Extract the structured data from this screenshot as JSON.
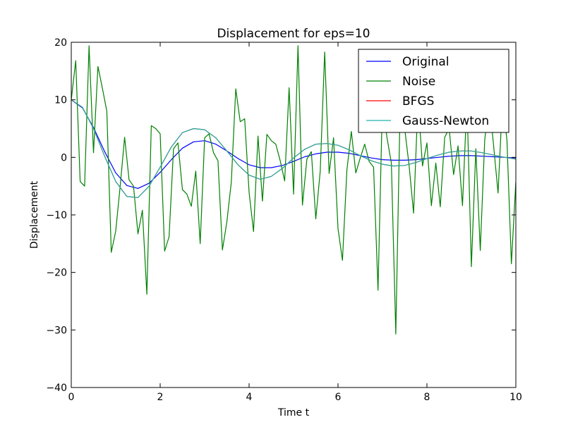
{
  "chart_data": {
    "type": "line",
    "title": "Displacement for eps=10",
    "xlabel": "Time t",
    "ylabel": "Displacement",
    "xlim": [
      0,
      10
    ],
    "ylim": [
      -40,
      20
    ],
    "xticks": [
      0,
      2,
      4,
      6,
      8,
      10
    ],
    "yticks": [
      -40,
      -30,
      -20,
      -10,
      0,
      10,
      20
    ],
    "xtick_labels": [
      "0",
      "2",
      "4",
      "6",
      "8",
      "10"
    ],
    "ytick_labels": [
      "−40",
      "−30",
      "−20",
      "−10",
      "0",
      "10",
      "20"
    ],
    "grid": false,
    "legend_position": "top-right",
    "series": [
      {
        "name": "Original",
        "color": "#0000ff",
        "x": [
          0,
          0.25,
          0.5,
          0.75,
          1.0,
          1.25,
          1.5,
          1.75,
          2.0,
          2.25,
          2.5,
          2.75,
          3.0,
          3.25,
          3.5,
          3.75,
          4.0,
          4.25,
          4.5,
          4.75,
          5.0,
          5.25,
          5.5,
          5.75,
          6.0,
          6.25,
          6.5,
          6.75,
          7.0,
          7.25,
          7.5,
          7.75,
          8.0,
          8.25,
          8.5,
          8.75,
          9.0,
          9.25,
          9.5,
          9.75,
          10.0
        ],
        "y": [
          10,
          8.6,
          5.2,
          1.0,
          -2.7,
          -4.9,
          -5.4,
          -4.5,
          -2.6,
          -0.4,
          1.6,
          2.7,
          2.9,
          2.3,
          1.1,
          -0.2,
          -1.3,
          -1.8,
          -1.8,
          -1.4,
          -0.7,
          0.1,
          0.6,
          0.9,
          0.9,
          0.7,
          0.3,
          -0.1,
          -0.4,
          -0.5,
          -0.5,
          -0.4,
          -0.2,
          0.0,
          0.2,
          0.3,
          0.3,
          0.2,
          0.1,
          0.0,
          -0.1
        ]
      },
      {
        "name": "Noise",
        "color": "#008000",
        "x": [
          0,
          0.1,
          0.2,
          0.3,
          0.4,
          0.5,
          0.6,
          0.7,
          0.8,
          0.9,
          1.0,
          1.1,
          1.2,
          1.3,
          1.4,
          1.5,
          1.6,
          1.7,
          1.8,
          1.9,
          2.0,
          2.1,
          2.2,
          2.3,
          2.4,
          2.5,
          2.6,
          2.7,
          2.8,
          2.9,
          3.0,
          3.1,
          3.2,
          3.3,
          3.4,
          3.5,
          3.6,
          3.7,
          3.8,
          3.9,
          4.0,
          4.1,
          4.2,
          4.3,
          4.4,
          4.5,
          4.6,
          4.7,
          4.8,
          4.9,
          5.0,
          5.1,
          5.2,
          5.3,
          5.4,
          5.5,
          5.6,
          5.7,
          5.8,
          5.9,
          6.0,
          6.1,
          6.2,
          6.3,
          6.4,
          6.5,
          6.6,
          6.7,
          6.8,
          6.9,
          7.0,
          7.1,
          7.2,
          7.3,
          7.4,
          7.5,
          7.6,
          7.7,
          7.8,
          7.9,
          8.0,
          8.1,
          8.2,
          8.3,
          8.4,
          8.5,
          8.6,
          8.7,
          8.8,
          8.9,
          9.0,
          9.1,
          9.2,
          9.3,
          9.4,
          9.5,
          9.6,
          9.7,
          9.8,
          9.9,
          10.0
        ],
        "y": [
          10,
          16.8,
          -4.2,
          -5.0,
          19.4,
          0.8,
          15.8,
          12.0,
          8.0,
          -16.5,
          -12.8,
          -5.0,
          3.5,
          -3.9,
          -5.0,
          -13.3,
          -9.2,
          -23.8,
          5.5,
          5.0,
          4.1,
          -16.3,
          -13.8,
          1.5,
          2.5,
          -5.6,
          -6.4,
          -8.5,
          -2.4,
          -15.0,
          3.4,
          4.1,
          0.8,
          -0.6,
          -16.1,
          -11.2,
          -4.3,
          11.9,
          6.2,
          6.7,
          -6.1,
          -12.9,
          3.7,
          -7.6,
          4.0,
          2.9,
          2.3,
          -0.6,
          -4.1,
          12.1,
          -6.4,
          19.4,
          -8.3,
          -0.3,
          1.0,
          -10.7,
          -2.4,
          18.3,
          -2.8,
          3.4,
          -12.4,
          -17.9,
          -2.2,
          4.5,
          -2.7,
          -0.1,
          2.3,
          -0.7,
          -1.7,
          -23.1,
          10.0,
          3.5,
          -1.0,
          -30.7,
          10.0,
          5.0,
          -1.5,
          -9.7,
          10.0,
          -1.5,
          2.5,
          -8.4,
          -1.0,
          -8.6,
          3.5,
          5.0,
          -3.0,
          2.0,
          -8.4,
          10.0,
          -19.0,
          1.5,
          -16.2,
          3.0,
          10.0,
          2.0,
          -6.2,
          10.0,
          3.0,
          -18.5,
          -4.2
        ]
      },
      {
        "name": "BFGS",
        "color": "#ff0000",
        "x": [
          0,
          0.25,
          0.5,
          0.75,
          1.0,
          1.25,
          1.5,
          1.75,
          2.0,
          2.25,
          2.5,
          2.75,
          3.0,
          3.25,
          3.5,
          3.75,
          4.0,
          4.25,
          4.5,
          4.75,
          5.0,
          5.25,
          5.5,
          5.75,
          6.0,
          6.25,
          6.5,
          6.75,
          7.0,
          7.25,
          7.5,
          7.75,
          8.0,
          8.25,
          8.5,
          8.75,
          9.0,
          9.25,
          9.5,
          9.75,
          10.0
        ],
        "y": [
          10,
          8.7,
          5.0,
          0.2,
          -4.2,
          -6.8,
          -7.0,
          -5.0,
          -1.7,
          1.8,
          4.3,
          5.0,
          4.8,
          3.4,
          1.1,
          -1.3,
          -3.1,
          -3.8,
          -3.3,
          -1.9,
          -0.1,
          1.4,
          2.3,
          2.4,
          2.1,
          1.3,
          0.3,
          -0.6,
          -1.2,
          -1.5,
          -1.4,
          -0.9,
          -0.2,
          0.4,
          0.9,
          1.1,
          1.1,
          0.8,
          0.4,
          0.0,
          -0.3
        ]
      },
      {
        "name": "Gauss-Newton",
        "color": "#20b2aa",
        "x": [
          0,
          0.25,
          0.5,
          0.75,
          1.0,
          1.25,
          1.5,
          1.75,
          2.0,
          2.25,
          2.5,
          2.75,
          3.0,
          3.25,
          3.5,
          3.75,
          4.0,
          4.25,
          4.5,
          4.75,
          5.0,
          5.25,
          5.5,
          5.75,
          6.0,
          6.25,
          6.5,
          6.75,
          7.0,
          7.25,
          7.5,
          7.75,
          8.0,
          8.25,
          8.5,
          8.75,
          9.0,
          9.25,
          9.5,
          9.75,
          10.0
        ],
        "y": [
          10,
          8.7,
          5.0,
          0.2,
          -4.2,
          -6.8,
          -7.0,
          -5.0,
          -1.7,
          1.8,
          4.3,
          5.0,
          4.8,
          3.4,
          1.1,
          -1.3,
          -3.1,
          -3.8,
          -3.3,
          -1.9,
          -0.1,
          1.4,
          2.3,
          2.4,
          2.1,
          1.3,
          0.3,
          -0.6,
          -1.2,
          -1.5,
          -1.4,
          -0.9,
          -0.2,
          0.4,
          0.9,
          1.1,
          1.1,
          0.8,
          0.4,
          0.0,
          -0.3
        ]
      }
    ]
  }
}
